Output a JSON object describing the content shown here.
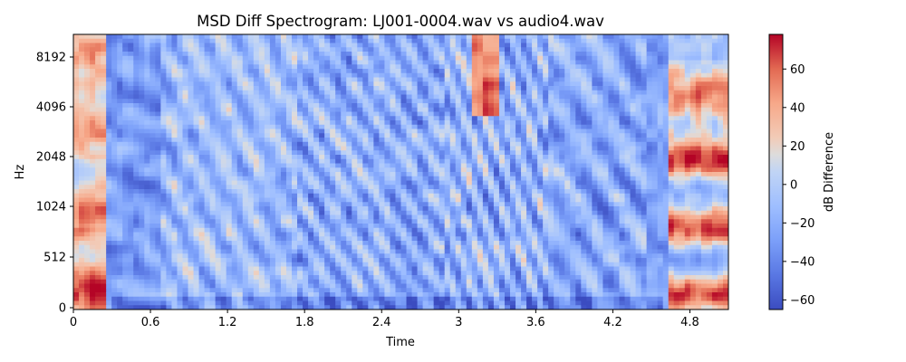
{
  "chart_data": {
    "type": "heatmap",
    "title": "MSD Diff Spectrogram: LJ001-0004.wav vs audio4.wav",
    "xlabel": "Time",
    "ylabel": "Hz",
    "colorbar_label": "dB Difference",
    "colormap": "coolwarm",
    "x_ticks": [
      0,
      0.6,
      1.2,
      1.8,
      2.4,
      3,
      3.6,
      4.2,
      4.8
    ],
    "x_tick_labels": [
      "0",
      "0.6",
      "1.2",
      "1.8",
      "2.4",
      "3",
      "3.6",
      "4.2",
      "4.8"
    ],
    "xlim": [
      0,
      5.1
    ],
    "y_scale": "symlog",
    "y_ticks": [
      0,
      512,
      1024,
      2048,
      4096,
      8192
    ],
    "y_tick_labels": [
      "0",
      "512",
      "1024",
      "2048",
      "4096",
      "8192"
    ],
    "ylim": [
      0,
      11025
    ],
    "colorbar_ticks": [
      60,
      40,
      20,
      0,
      -20,
      -40,
      -60
    ],
    "colorbar_tick_labels": [
      "60",
      "40",
      "20",
      "0",
      "−20",
      "−40",
      "−60"
    ],
    "colorbar_range": [
      -65,
      78
    ],
    "regions": [
      {
        "time": [
          0.0,
          0.27
        ],
        "freq": [
          0,
          11025
        ],
        "db": 35,
        "note": "strong positive"
      },
      {
        "time": [
          0.27,
          0.7
        ],
        "freq": [
          0,
          11025
        ],
        "db": -30
      },
      {
        "time": [
          0.7,
          1.7
        ],
        "freq": [
          0,
          11025
        ],
        "db": -10
      },
      {
        "time": [
          1.8,
          2.9
        ],
        "freq": [
          0,
          11025
        ],
        "db": -20
      },
      {
        "time": [
          3.1,
          3.3
        ],
        "freq": [
          4096,
          11025
        ],
        "db": 50
      },
      {
        "time": [
          4.65,
          5.1
        ],
        "freq": [
          0,
          4096
        ],
        "db": 45,
        "note": "strong positive"
      }
    ]
  }
}
